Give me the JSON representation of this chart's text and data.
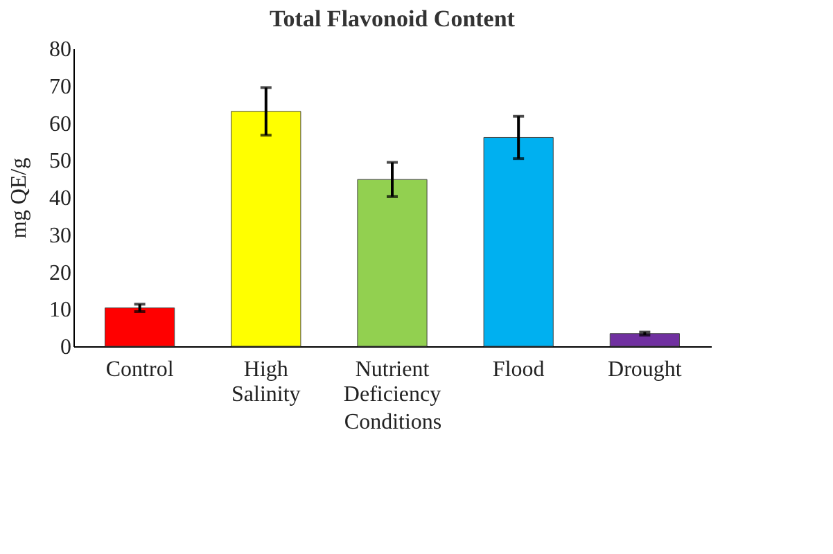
{
  "chart_data": {
    "type": "bar",
    "title": "Total Flavonoid Content",
    "xlabel": "Conditions",
    "ylabel": "mg QE/g",
    "categories": [
      "Control",
      "High Salinity",
      "Nutrient Deficiency",
      "Flood",
      "Drought"
    ],
    "values": [
      10.3,
      63.1,
      44.8,
      56.1,
      3.4
    ],
    "colors": [
      "#ff0000",
      "#ffff00",
      "#92d050",
      "#00b0f0",
      "#7030a0"
    ],
    "errors": [
      1.0,
      6.4,
      4.6,
      5.7,
      0.4
    ],
    "ylim": [
      0,
      80
    ],
    "yticks": [
      0,
      10,
      20,
      30,
      40,
      50,
      60,
      70,
      80
    ],
    "grid": false
  }
}
